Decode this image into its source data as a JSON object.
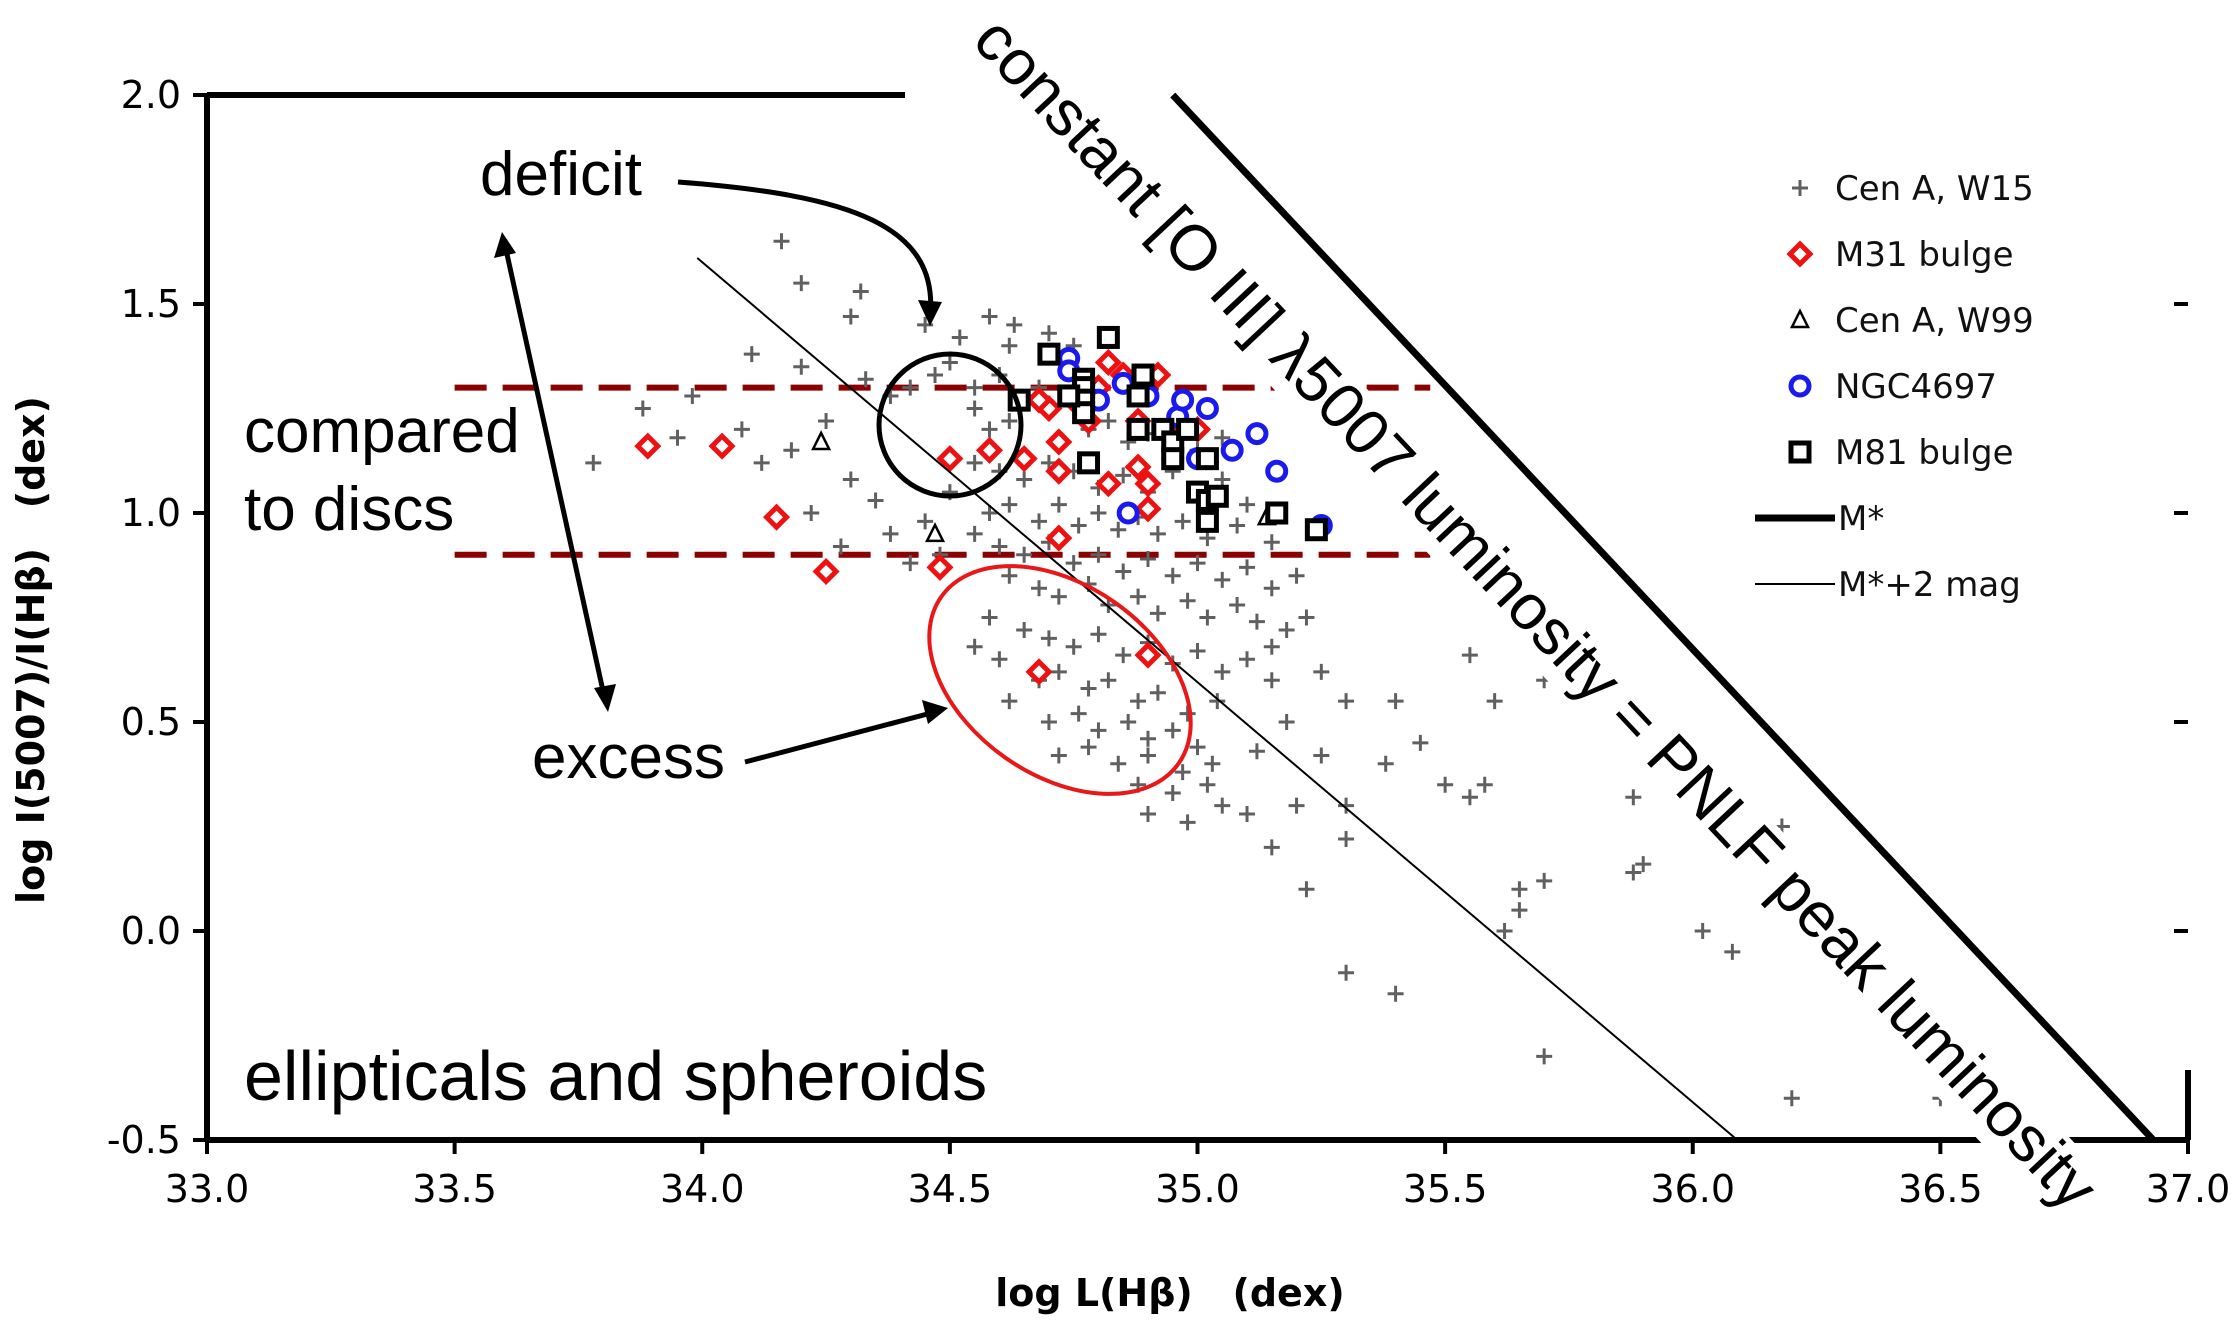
{
  "chart_data": {
    "type": "scatter",
    "xlabel": "log L(Hβ)   (dex)",
    "ylabel": "log I(5007)/I(Hβ)   (dex)",
    "xlim": [
      33.0,
      37.0
    ],
    "ylim": [
      -0.5,
      2.0
    ],
    "x_ticks": [
      "33.0",
      "33.5",
      "34.0",
      "34.5",
      "35.0",
      "35.5",
      "36.0",
      "36.5",
      "37.0"
    ],
    "y_ticks": [
      "2.0",
      "1.5",
      "1.0",
      "0.5",
      "0.0",
      "-0.5"
    ],
    "grid": false,
    "legend_position": "top-right",
    "series": [
      {
        "name": "Cen A, W15",
        "marker": "plus",
        "color": "#606060",
        "points": [
          [
            34.16,
            1.65
          ],
          [
            34.2,
            1.55
          ],
          [
            34.32,
            1.53
          ],
          [
            34.3,
            1.47
          ],
          [
            34.45,
            1.45
          ],
          [
            34.52,
            1.42
          ],
          [
            34.58,
            1.47
          ],
          [
            34.62,
            1.4
          ],
          [
            34.63,
            1.45
          ],
          [
            34.7,
            1.43
          ],
          [
            34.75,
            1.4
          ],
          [
            34.1,
            1.38
          ],
          [
            34.2,
            1.35
          ],
          [
            34.33,
            1.32
          ],
          [
            34.38,
            1.28
          ],
          [
            34.42,
            1.3
          ],
          [
            34.47,
            1.33
          ],
          [
            34.5,
            1.36
          ],
          [
            34.55,
            1.3
          ],
          [
            34.6,
            1.33
          ],
          [
            34.65,
            1.27
          ],
          [
            34.68,
            1.3
          ],
          [
            34.55,
            1.25
          ],
          [
            34.58,
            1.2
          ],
          [
            34.62,
            1.22
          ],
          [
            34.72,
            1.18
          ],
          [
            34.78,
            1.2
          ],
          [
            34.82,
            1.22
          ],
          [
            34.86,
            1.17
          ],
          [
            34.9,
            1.19
          ],
          [
            34.95,
            1.22
          ],
          [
            35.0,
            1.15
          ],
          [
            35.05,
            1.18
          ],
          [
            34.55,
            1.12
          ],
          [
            34.6,
            1.1
          ],
          [
            34.65,
            1.08
          ],
          [
            34.7,
            1.12
          ],
          [
            34.75,
            1.1
          ],
          [
            34.8,
            1.06
          ],
          [
            34.85,
            1.09
          ],
          [
            34.9,
            1.05
          ],
          [
            34.95,
            1.1
          ],
          [
            35.0,
            1.05
          ],
          [
            35.05,
            1.08
          ],
          [
            35.1,
            1.02
          ],
          [
            34.5,
            1.05
          ],
          [
            34.58,
            1.0
          ],
          [
            34.62,
            1.02
          ],
          [
            34.68,
            0.98
          ],
          [
            34.72,
            1.02
          ],
          [
            34.76,
            0.97
          ],
          [
            34.8,
            1.0
          ],
          [
            34.84,
            0.96
          ],
          [
            34.88,
            0.99
          ],
          [
            34.92,
            0.95
          ],
          [
            34.97,
            0.98
          ],
          [
            35.02,
            0.94
          ],
          [
            35.08,
            0.97
          ],
          [
            35.15,
            0.93
          ],
          [
            34.55,
            0.95
          ],
          [
            34.6,
            0.92
          ],
          [
            34.65,
            0.9
          ],
          [
            34.7,
            0.93
          ],
          [
            34.75,
            0.88
          ],
          [
            34.8,
            0.9
          ],
          [
            34.85,
            0.86
          ],
          [
            34.9,
            0.89
          ],
          [
            34.95,
            0.85
          ],
          [
            35.0,
            0.88
          ],
          [
            35.05,
            0.84
          ],
          [
            35.1,
            0.87
          ],
          [
            35.15,
            0.82
          ],
          [
            35.2,
            0.85
          ],
          [
            34.62,
            0.85
          ],
          [
            34.68,
            0.82
          ],
          [
            34.72,
            0.8
          ],
          [
            34.78,
            0.83
          ],
          [
            34.82,
            0.78
          ],
          [
            34.88,
            0.8
          ],
          [
            34.92,
            0.76
          ],
          [
            34.98,
            0.79
          ],
          [
            35.02,
            0.75
          ],
          [
            35.08,
            0.78
          ],
          [
            35.12,
            0.74
          ],
          [
            35.18,
            0.72
          ],
          [
            35.22,
            0.75
          ],
          [
            34.58,
            0.75
          ],
          [
            34.65,
            0.72
          ],
          [
            34.7,
            0.7
          ],
          [
            34.75,
            0.68
          ],
          [
            34.8,
            0.71
          ],
          [
            34.85,
            0.66
          ],
          [
            34.9,
            0.69
          ],
          [
            34.95,
            0.64
          ],
          [
            35.0,
            0.67
          ],
          [
            35.05,
            0.62
          ],
          [
            35.1,
            0.65
          ],
          [
            35.15,
            0.6
          ],
          [
            34.55,
            0.68
          ],
          [
            34.6,
            0.65
          ],
          [
            34.68,
            0.6
          ],
          [
            34.72,
            0.62
          ],
          [
            34.78,
            0.58
          ],
          [
            34.82,
            0.6
          ],
          [
            34.88,
            0.55
          ],
          [
            34.92,
            0.57
          ],
          [
            34.98,
            0.52
          ],
          [
            35.04,
            0.55
          ],
          [
            34.62,
            0.55
          ],
          [
            34.7,
            0.5
          ],
          [
            34.76,
            0.52
          ],
          [
            34.8,
            0.48
          ],
          [
            34.86,
            0.5
          ],
          [
            34.9,
            0.46
          ],
          [
            34.95,
            0.48
          ],
          [
            35.0,
            0.44
          ],
          [
            34.72,
            0.42
          ],
          [
            34.78,
            0.44
          ],
          [
            34.84,
            0.4
          ],
          [
            34.9,
            0.42
          ],
          [
            34.97,
            0.38
          ],
          [
            35.03,
            0.4
          ],
          [
            35.12,
            0.43
          ],
          [
            34.88,
            0.35
          ],
          [
            34.95,
            0.33
          ],
          [
            35.02,
            0.35
          ],
          [
            35.05,
            0.3
          ],
          [
            35.1,
            0.28
          ],
          [
            35.2,
            0.3
          ],
          [
            34.9,
            0.28
          ],
          [
            34.98,
            0.26
          ],
          [
            33.88,
            1.25
          ],
          [
            33.95,
            1.18
          ],
          [
            34.08,
            1.2
          ],
          [
            34.18,
            1.15
          ],
          [
            34.22,
            1.0
          ],
          [
            34.3,
            1.08
          ],
          [
            34.35,
            1.03
          ],
          [
            34.28,
            0.92
          ],
          [
            34.38,
            0.95
          ],
          [
            34.42,
            0.88
          ],
          [
            34.45,
            0.98
          ],
          [
            34.48,
            0.9
          ],
          [
            33.78,
            1.12
          ],
          [
            33.98,
            1.28
          ],
          [
            34.12,
            1.12
          ],
          [
            34.25,
            1.22
          ],
          [
            35.15,
            0.68
          ],
          [
            35.25,
            0.62
          ],
          [
            35.3,
            0.55
          ],
          [
            35.18,
            0.5
          ],
          [
            35.25,
            0.42
          ],
          [
            35.38,
            0.4
          ],
          [
            35.45,
            0.45
          ],
          [
            35.55,
            0.32
          ],
          [
            35.6,
            0.55
          ],
          [
            35.55,
            0.66
          ],
          [
            35.3,
            0.22
          ],
          [
            35.22,
            0.1
          ],
          [
            35.65,
            0.1
          ],
          [
            35.65,
            0.05
          ],
          [
            35.7,
            0.12
          ],
          [
            35.62,
            0.0
          ],
          [
            35.88,
            0.32
          ],
          [
            35.88,
            0.14
          ],
          [
            35.9,
            0.16
          ],
          [
            36.02,
            0.0
          ],
          [
            36.08,
            -0.05
          ],
          [
            35.7,
            0.6
          ],
          [
            35.5,
            0.35
          ],
          [
            35.3,
            -0.1
          ],
          [
            35.4,
            -0.15
          ],
          [
            35.7,
            -0.3
          ],
          [
            35.82,
            0.6
          ],
          [
            36.2,
            -0.4
          ],
          [
            36.5,
            -0.4
          ],
          [
            36.18,
            0.25
          ],
          [
            36.0,
            0.4
          ],
          [
            35.58,
            0.35
          ],
          [
            35.3,
            0.3
          ],
          [
            35.4,
            0.55
          ],
          [
            35.15,
            0.2
          ]
        ]
      },
      {
        "name": "M31 bulge",
        "marker": "diamond",
        "color": "#ee1111",
        "points": [
          [
            33.89,
            1.16
          ],
          [
            34.04,
            1.16
          ],
          [
            34.15,
            0.99
          ],
          [
            34.25,
            0.86
          ],
          [
            34.48,
            0.87
          ],
          [
            34.68,
            0.62
          ],
          [
            34.9,
            0.66
          ],
          [
            34.5,
            1.13
          ],
          [
            34.58,
            1.15
          ],
          [
            34.65,
            1.13
          ],
          [
            34.72,
            1.1
          ],
          [
            34.72,
            1.17
          ],
          [
            34.7,
            1.25
          ],
          [
            34.75,
            1.27
          ],
          [
            34.78,
            1.28
          ],
          [
            34.8,
            1.3
          ],
          [
            34.82,
            1.36
          ],
          [
            34.85,
            1.33
          ],
          [
            34.88,
            1.22
          ],
          [
            34.92,
            1.33
          ],
          [
            34.88,
            1.11
          ],
          [
            34.9,
            1.07
          ],
          [
            34.9,
            1.01
          ],
          [
            34.82,
            1.07
          ],
          [
            34.72,
            0.94
          ],
          [
            34.95,
            1.18
          ],
          [
            35.0,
            1.2
          ],
          [
            34.78,
            1.22
          ],
          [
            34.68,
            1.27
          ]
        ]
      },
      {
        "name": "Cen A, W99",
        "marker": "triangle",
        "color": "#000000",
        "points": [
          [
            34.24,
            1.17
          ],
          [
            34.47,
            0.95
          ],
          [
            35.14,
            0.99
          ]
        ]
      },
      {
        "name": "NGC4697",
        "marker": "circle",
        "color": "#1a1aee",
        "points": [
          [
            34.74,
            1.37
          ],
          [
            34.74,
            1.34
          ],
          [
            34.8,
            1.27
          ],
          [
            34.85,
            1.31
          ],
          [
            34.9,
            1.28
          ],
          [
            34.96,
            1.23
          ],
          [
            34.97,
            1.27
          ],
          [
            35.02,
            1.25
          ],
          [
            35.07,
            1.15
          ],
          [
            35.12,
            1.19
          ],
          [
            35.16,
            1.1
          ],
          [
            35.25,
            0.97
          ],
          [
            34.86,
            1.0
          ],
          [
            34.95,
            1.13
          ],
          [
            35.0,
            1.13
          ]
        ]
      },
      {
        "name": "M81 bulge",
        "marker": "square",
        "color": "#000000",
        "points": [
          [
            34.7,
            1.38
          ],
          [
            34.82,
            1.42
          ],
          [
            34.77,
            1.32
          ],
          [
            34.77,
            1.3
          ],
          [
            34.77,
            1.27
          ],
          [
            34.77,
            1.24
          ],
          [
            34.78,
            1.12
          ],
          [
            34.89,
            1.33
          ],
          [
            34.88,
            1.2
          ],
          [
            34.93,
            1.2
          ],
          [
            34.95,
            1.17
          ],
          [
            34.98,
            1.2
          ],
          [
            34.95,
            1.13
          ],
          [
            35.0,
            1.05
          ],
          [
            35.02,
            1.13
          ],
          [
            35.02,
            1.03
          ],
          [
            35.04,
            1.04
          ],
          [
            35.02,
            0.98
          ],
          [
            35.16,
            1.0
          ],
          [
            35.24,
            0.96
          ],
          [
            34.64,
            1.27
          ],
          [
            34.74,
            1.28
          ],
          [
            34.88,
            1.28
          ]
        ]
      }
    ],
    "reference_lines": [
      {
        "name": "M*",
        "style": "solid",
        "weight": "thick",
        "points": [
          [
            34.95,
            2.0
          ],
          [
            36.93,
            -0.5
          ]
        ]
      },
      {
        "name": "M*+2 mag",
        "style": "solid",
        "weight": "thin",
        "points": [
          [
            33.99,
            1.61
          ],
          [
            36.09,
            -0.5
          ]
        ]
      },
      {
        "style": "dashed",
        "color": "#8b0000",
        "points": [
          [
            33.5,
            1.3
          ],
          [
            35.47,
            1.3
          ]
        ]
      },
      {
        "style": "dashed",
        "color": "#8b0000",
        "points": [
          [
            33.5,
            0.9
          ],
          [
            35.47,
            0.9
          ]
        ]
      }
    ],
    "annotations": [
      {
        "text": "deficit"
      },
      {
        "text": "excess"
      },
      {
        "text": "compared"
      },
      {
        "text": "to discs"
      },
      {
        "text": "ellipticals and spheroids"
      },
      {
        "text": "constant [O III] λ5007 luminosity = PNLF peak luminosity"
      }
    ]
  }
}
